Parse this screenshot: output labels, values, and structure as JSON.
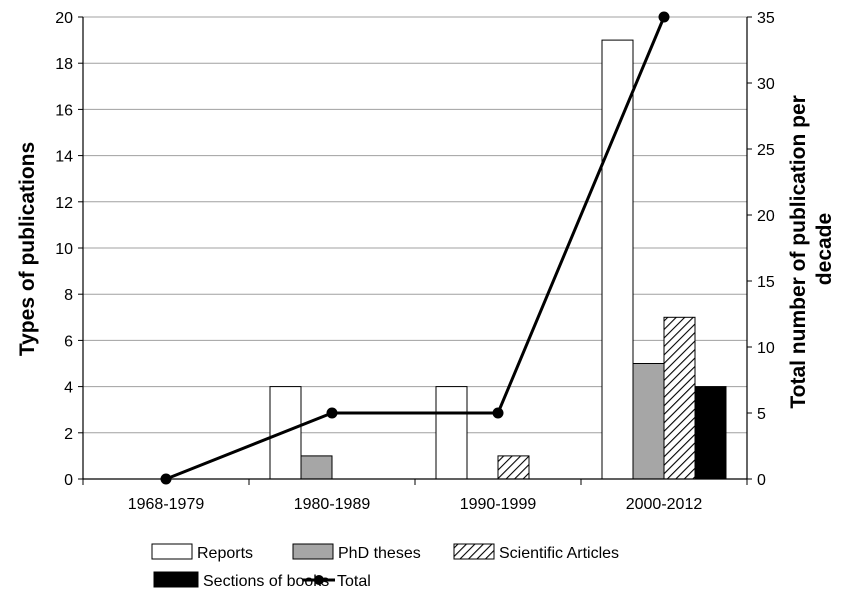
{
  "chart_data": {
    "type": "bar",
    "categories": [
      "1968-1979",
      "1980-1989",
      "1990-1999",
      "2000-2012"
    ],
    "series": [
      {
        "name": "Reports",
        "values": [
          0,
          4,
          4,
          19
        ],
        "axis": "left",
        "style": "white"
      },
      {
        "name": "PhD theses",
        "values": [
          0,
          1,
          0,
          5
        ],
        "axis": "left",
        "style": "gray"
      },
      {
        "name": "Scientific Articles",
        "values": [
          0,
          0,
          1,
          7
        ],
        "axis": "left",
        "style": "hatched"
      },
      {
        "name": "Sections of books",
        "values": [
          0,
          0,
          0,
          4
        ],
        "axis": "left",
        "style": "black"
      },
      {
        "name": "Total",
        "values": [
          0,
          5,
          5,
          35
        ],
        "axis": "right",
        "style": "line"
      }
    ],
    "ylabel": "Types of publications",
    "y2label_lines": [
      "Total number of publication per",
      "decade"
    ],
    "ylim": [
      0,
      20
    ],
    "y2lim": [
      0,
      35
    ],
    "yticks": [
      0,
      2,
      4,
      6,
      8,
      10,
      12,
      14,
      16,
      18,
      20
    ],
    "y2ticks": [
      0,
      5,
      10,
      15,
      20,
      25,
      30,
      35
    ],
    "grid": true,
    "legend_position": "bottom",
    "colors": {
      "Reports": "#ffffff",
      "PhD theses": "#a6a6a6",
      "Scientific Articles": "#ffffff",
      "Sections of books": "#000000",
      "Total": "#000000",
      "grid": "#a0a0a0",
      "bar_edge": "#000000"
    }
  }
}
